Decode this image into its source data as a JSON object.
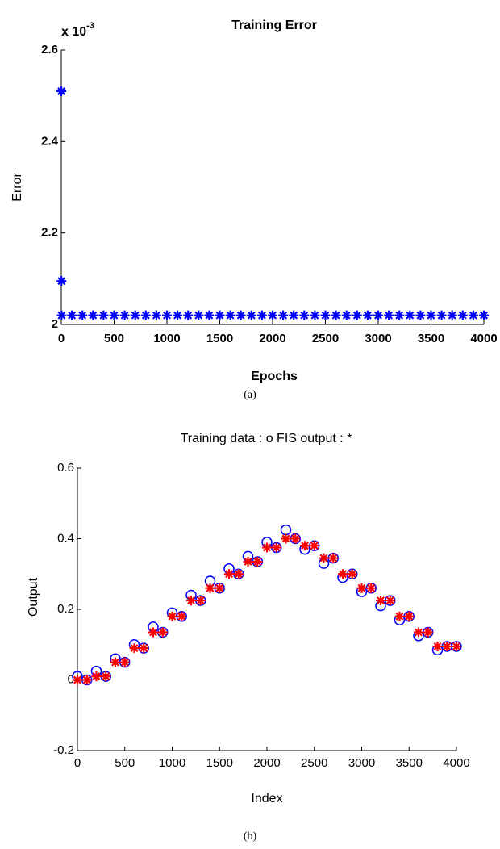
{
  "charts": [
    {
      "type": "scatter",
      "title": "Training Error",
      "x_label": "Epochs",
      "y_label": "Error",
      "y_multiplier": {
        "base": "x 10",
        "exponent": "-3"
      },
      "caption": "(a)",
      "xlim": [
        0,
        4000
      ],
      "ylim": [
        2,
        2.6
      ],
      "xticks": [
        0,
        500,
        1000,
        1500,
        2000,
        2500,
        3000,
        3500,
        4000
      ],
      "yticks": [
        2,
        2.2,
        2.4,
        2.6
      ],
      "x": [
        1,
        2,
        3,
        100,
        200,
        300,
        400,
        500,
        600,
        700,
        800,
        900,
        1000,
        1100,
        1200,
        1300,
        1400,
        1500,
        1600,
        1700,
        1800,
        1900,
        2000,
        2100,
        2200,
        2300,
        2400,
        2500,
        2600,
        2700,
        2800,
        2900,
        3000,
        3100,
        3200,
        3300,
        3400,
        3500,
        3600,
        3700,
        3800,
        3900,
        4000
      ],
      "series": [
        {
          "marker": "*",
          "color": "#0000ff",
          "values": [
            2.51,
            2.095,
            2.02,
            2.02,
            2.02,
            2.02,
            2.02,
            2.02,
            2.02,
            2.02,
            2.02,
            2.02,
            2.02,
            2.02,
            2.02,
            2.02,
            2.02,
            2.02,
            2.02,
            2.02,
            2.02,
            2.02,
            2.02,
            2.02,
            2.02,
            2.02,
            2.02,
            2.02,
            2.02,
            2.02,
            2.02,
            2.02,
            2.02,
            2.02,
            2.02,
            2.02,
            2.02,
            2.02,
            2.02,
            2.02,
            2.02,
            2.02,
            2.02
          ]
        }
      ]
    },
    {
      "type": "scatter",
      "title": "Training data : o   FIS output : *",
      "x_label": "Index",
      "y_label": "Output",
      "caption": "(b)",
      "xlim": [
        0,
        4000
      ],
      "ylim": [
        -0.2,
        0.6
      ],
      "xticks": [
        0,
        500,
        1000,
        1500,
        2000,
        2500,
        3000,
        3500,
        4000
      ],
      "yticks": [
        -0.2,
        0,
        0.2,
        0.4,
        0.6
      ],
      "x": [
        0,
        100,
        200,
        300,
        400,
        500,
        600,
        700,
        800,
        900,
        1000,
        1100,
        1200,
        1300,
        1400,
        1500,
        1600,
        1700,
        1800,
        1900,
        2000,
        2100,
        2200,
        2300,
        2400,
        2500,
        2600,
        2700,
        2800,
        2900,
        3000,
        3100,
        3200,
        3300,
        3400,
        3500,
        3600,
        3700,
        3800,
        3900,
        4000
      ],
      "series": [
        {
          "marker": "o",
          "color": "#0000ff",
          "values": [
            0.01,
            0,
            0.025,
            0.01,
            0.06,
            0.05,
            0.1,
            0.09,
            0.15,
            0.135,
            0.19,
            0.18,
            0.24,
            0.225,
            0.28,
            0.26,
            0.315,
            0.3,
            0.35,
            0.335,
            0.39,
            0.375,
            0.425,
            0.4,
            0.37,
            0.38,
            0.33,
            0.345,
            0.29,
            0.3,
            0.25,
            0.26,
            0.21,
            0.225,
            0.17,
            0.18,
            0.125,
            0.135,
            0.085,
            0.095,
            0.095
          ]
        },
        {
          "marker": "*",
          "color": "#ff0000",
          "values": [
            0,
            0,
            0.01,
            0.01,
            0.05,
            0.05,
            0.09,
            0.09,
            0.135,
            0.135,
            0.18,
            0.18,
            0.225,
            0.225,
            0.26,
            0.26,
            0.3,
            0.3,
            0.335,
            0.335,
            0.375,
            0.375,
            0.4,
            0.4,
            0.38,
            0.38,
            0.345,
            0.345,
            0.3,
            0.3,
            0.26,
            0.26,
            0.225,
            0.225,
            0.18,
            0.18,
            0.135,
            0.135,
            0.095,
            0.095,
            0.095
          ]
        }
      ]
    }
  ]
}
